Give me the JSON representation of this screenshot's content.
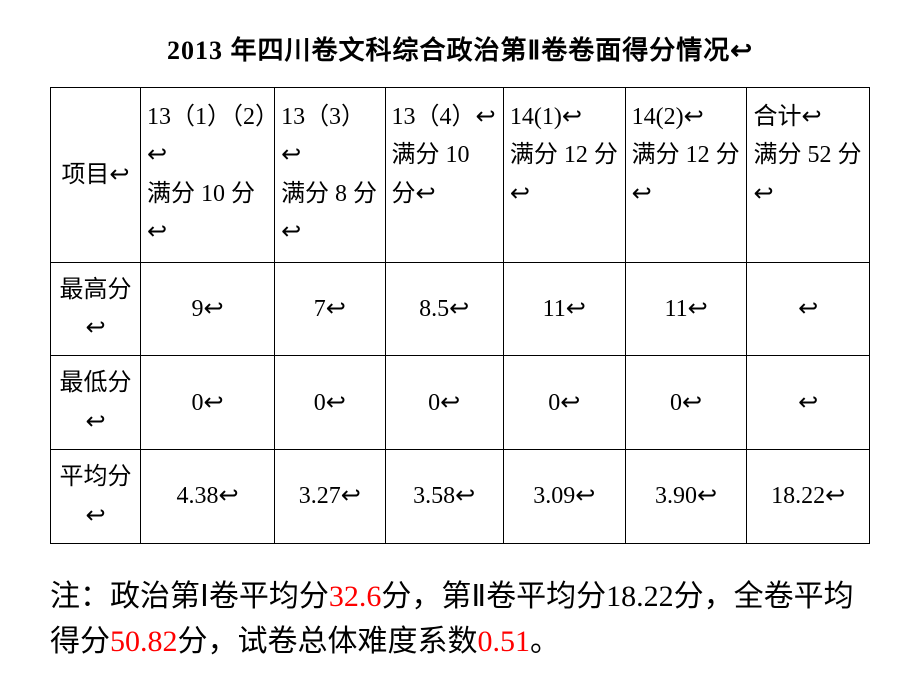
{
  "title": "2013 年四川卷文科综合政治第Ⅱ卷卷面得分情况↩",
  "table": {
    "row_labels": [
      "项目↩",
      "最高分↩",
      "最低分↩",
      "平均分↩"
    ],
    "columns": [
      {
        "main": "13（1）（2）↩",
        "sub": "满分 10 分↩"
      },
      {
        "main": "13（3）↩",
        "sub": "满分 8 分↩"
      },
      {
        "main": "13（4）↩",
        "sub": "满分 10 分↩"
      },
      {
        "main": "14(1)↩",
        "sub": "满分 12 分↩"
      },
      {
        "main": "14(2)↩",
        "sub": "满分 12 分↩"
      },
      {
        "main": "合计↩",
        "sub": "满分 52 分↩"
      }
    ],
    "rows": [
      [
        "9↩",
        "7↩",
        "8.5↩",
        "11↩",
        "11↩",
        "↩"
      ],
      [
        "0↩",
        "0↩",
        "0↩",
        "0↩",
        "0↩",
        "↩"
      ],
      [
        "4.38↩",
        "3.27↩",
        "3.58↩",
        "3.09↩",
        "3.90↩",
        "18.22↩"
      ]
    ]
  },
  "note": {
    "part1": "注：政治第Ⅰ卷平均分",
    "val1": "32.6",
    "part2": "分，第Ⅱ卷平均分18.22分，全卷平均得分",
    "val2": "50.82",
    "part3": "分，试卷总体难度系数",
    "val3": "0.51",
    "part4": "。"
  }
}
